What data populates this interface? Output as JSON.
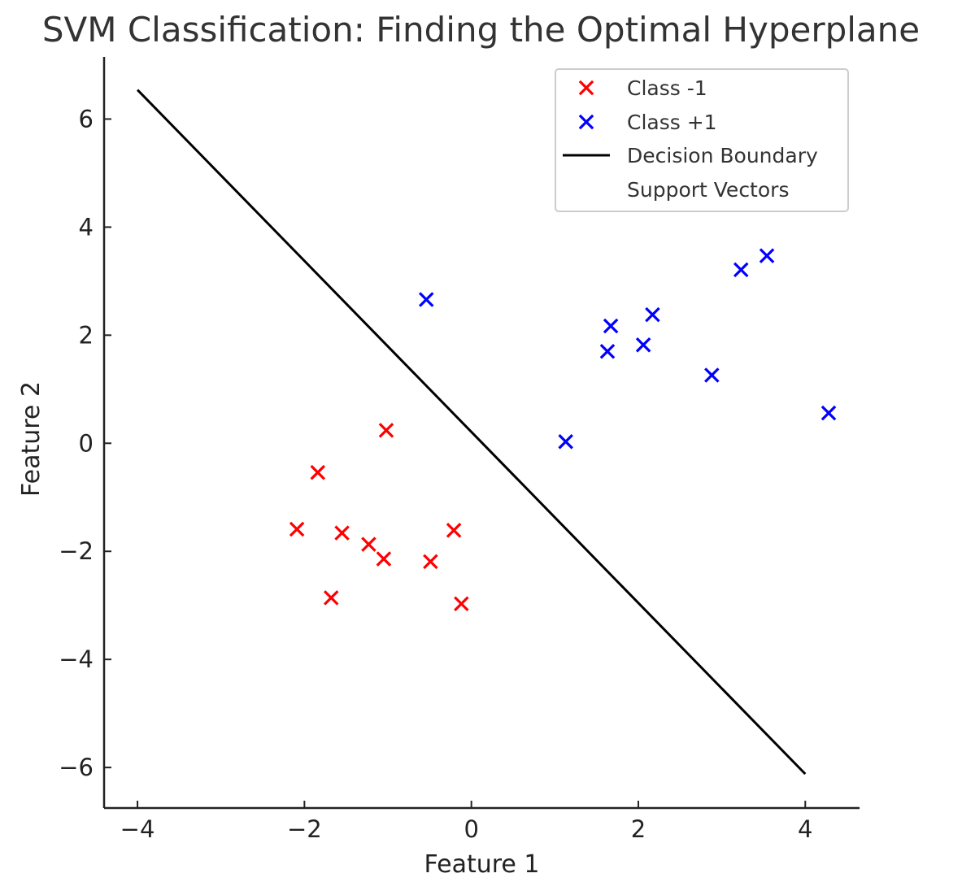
{
  "chart_data": {
    "type": "scatter",
    "title": "SVM Classification: Finding the Optimal Hyperplane",
    "xlabel": "Feature 1",
    "ylabel": "Feature 2",
    "xlim": [
      -4.4,
      4.65
    ],
    "ylim": [
      -6.75,
      7.15
    ],
    "xticks": [
      -4,
      -2,
      0,
      2,
      4
    ],
    "yticks": [
      -6,
      -4,
      -2,
      0,
      2,
      4,
      6
    ],
    "xtick_labels": [
      "−4",
      "−2",
      "0",
      "2",
      "4"
    ],
    "ytick_labels": [
      "−6",
      "−4",
      "−2",
      "0",
      "2",
      "4",
      "6"
    ],
    "grid": false,
    "legend_position": "top-right",
    "series": [
      {
        "name": "Class -1",
        "marker": "x",
        "color": "#ff0000",
        "points": [
          [
            -1.02,
            0.24
          ],
          [
            -1.84,
            -0.54
          ],
          [
            -2.09,
            -1.59
          ],
          [
            -1.55,
            -1.66
          ],
          [
            -1.23,
            -1.87
          ],
          [
            -1.05,
            -2.14
          ],
          [
            -0.49,
            -2.19
          ],
          [
            -0.21,
            -1.61
          ],
          [
            -1.68,
            -2.86
          ],
          [
            -0.12,
            -2.97
          ]
        ]
      },
      {
        "name": "Class +1",
        "marker": "x",
        "color": "#0000ff",
        "points": [
          [
            -0.54,
            2.66
          ],
          [
            1.13,
            0.03
          ],
          [
            1.63,
            1.7
          ],
          [
            1.67,
            2.17
          ],
          [
            2.06,
            1.82
          ],
          [
            2.17,
            2.38
          ],
          [
            2.88,
            1.26
          ],
          [
            3.23,
            3.21
          ],
          [
            3.54,
            3.47
          ],
          [
            4.28,
            0.56
          ]
        ]
      },
      {
        "name": "Decision Boundary",
        "type": "line",
        "color": "#000000",
        "points": [
          [
            -4.0,
            6.54
          ],
          [
            4.0,
            -6.12
          ]
        ]
      },
      {
        "name": "Support Vectors",
        "marker": "none",
        "points": []
      }
    ]
  }
}
